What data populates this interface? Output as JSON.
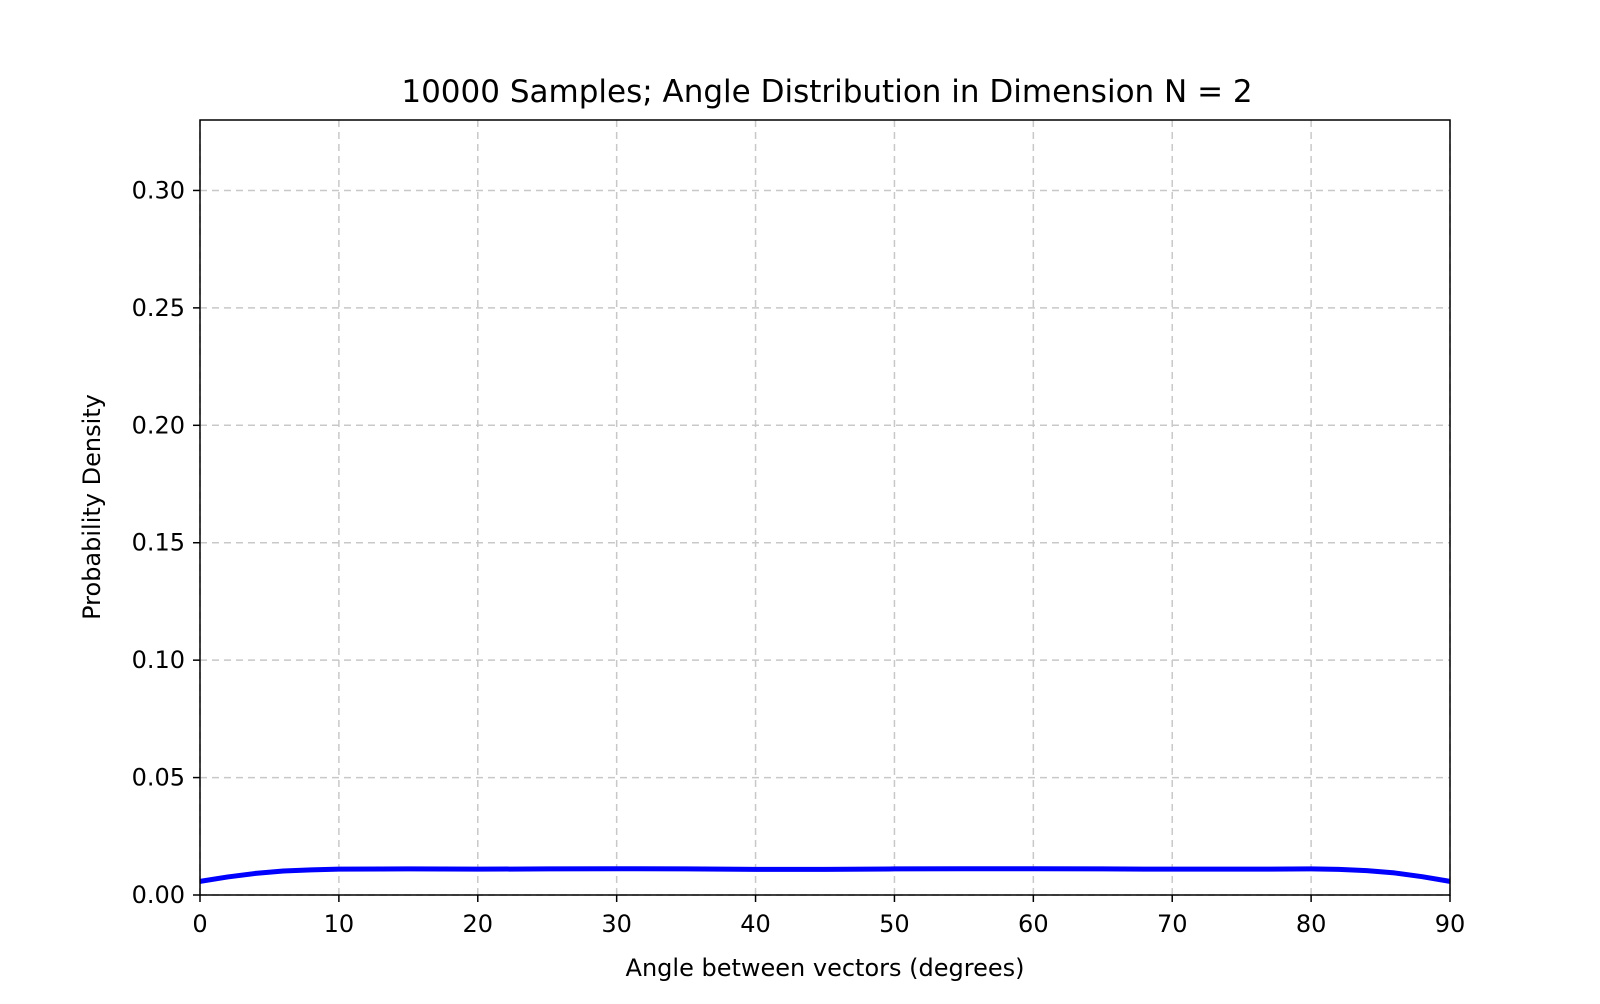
{
  "chart_data": {
    "type": "line",
    "title": "10000 Samples; Angle Distribution in Dimension N = 2",
    "xlabel": "Angle between vectors (degrees)",
    "ylabel": "Probability Density",
    "xlim": [
      0,
      90
    ],
    "ylim": [
      0,
      0.33
    ],
    "x_ticks": [
      0,
      10,
      20,
      30,
      40,
      50,
      60,
      70,
      80,
      90
    ],
    "x_tick_labels": [
      "0",
      "10",
      "20",
      "30",
      "40",
      "50",
      "60",
      "70",
      "80",
      "90"
    ],
    "y_ticks": [
      0.0,
      0.05,
      0.1,
      0.15,
      0.2,
      0.25,
      0.3
    ],
    "y_tick_labels": [
      "0.00",
      "0.05",
      "0.10",
      "0.15",
      "0.20",
      "0.25",
      "0.30"
    ],
    "grid": true,
    "grid_style": "dashed",
    "line_color": "#0000ff",
    "series": [
      {
        "x": [
          0,
          2,
          4,
          6,
          8,
          10,
          15,
          20,
          25,
          30,
          35,
          40,
          45,
          50,
          55,
          60,
          65,
          70,
          75,
          80,
          82,
          84,
          86,
          88,
          90
        ],
        "y": [
          0.0058,
          0.0077,
          0.0092,
          0.0102,
          0.0107,
          0.011,
          0.0111,
          0.011,
          0.0111,
          0.0112,
          0.0111,
          0.0109,
          0.0109,
          0.0111,
          0.0112,
          0.0112,
          0.0111,
          0.011,
          0.011,
          0.0111,
          0.0109,
          0.0104,
          0.0094,
          0.0078,
          0.0058
        ]
      }
    ]
  }
}
